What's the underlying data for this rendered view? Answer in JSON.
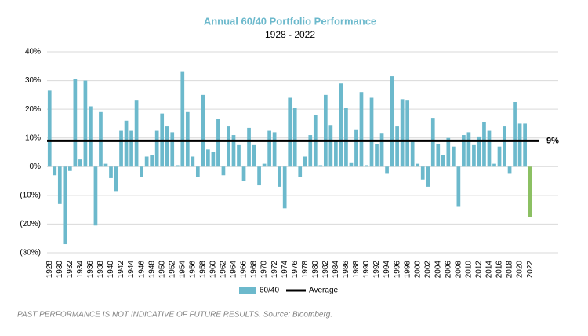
{
  "chart_data": {
    "type": "bar",
    "title": "Annual 60/40 Portfolio Performance",
    "subtitle": "1928 - 2022",
    "footnote": "PAST PERFORMANCE IS NOT INDICATIVE OF FUTURE RESULTS. Source: Bloomberg.",
    "categories": [
      "1928",
      null,
      "1930",
      null,
      "1932",
      null,
      "1934",
      null,
      "1936",
      null,
      "1938",
      null,
      "1940",
      null,
      "1942",
      null,
      "1944",
      null,
      "1946",
      null,
      "1948",
      null,
      "1950",
      null,
      "1952",
      null,
      "1954",
      null,
      "1956",
      null,
      "1958",
      null,
      "1960",
      null,
      "1962",
      null,
      "1964",
      null,
      "1966",
      null,
      "1968",
      null,
      "1970",
      null,
      "1972",
      null,
      "1974",
      null,
      "1976",
      null,
      "1978",
      null,
      "1980",
      null,
      "1982",
      null,
      "1984",
      null,
      "1986",
      null,
      "1988",
      null,
      "1990",
      null,
      "1992",
      null,
      "1994",
      null,
      "1996",
      null,
      "1998",
      null,
      "2000",
      null,
      "2002",
      null,
      "2004",
      null,
      "2006",
      null,
      "2008",
      null,
      "2010",
      null,
      "2012",
      null,
      "2014",
      null,
      "2016",
      null,
      "2018",
      null,
      "2020",
      null,
      "2022"
    ],
    "series": [
      {
        "name": "60/40",
        "color": "#6cb9cc",
        "values": [
          26.5,
          -3,
          -13,
          -27,
          -1.5,
          30.5,
          2.5,
          30,
          21,
          -20.5,
          19,
          1,
          -4,
          -8.5,
          12.5,
          16,
          12.5,
          23,
          -3.5,
          3.5,
          4,
          12.5,
          18.5,
          14,
          12,
          0.5,
          33,
          19,
          3.5,
          -3.5,
          25,
          6,
          5,
          16.5,
          -3,
          14,
          11,
          7.5,
          -5,
          13.5,
          7.5,
          -6.5,
          1,
          12.5,
          12,
          -7,
          -14.5,
          24,
          20.5,
          -3.5,
          3.5,
          11,
          18,
          0.5,
          25,
          14.5,
          9,
          29,
          20.5,
          1.5,
          13,
          26,
          0.5,
          24,
          8,
          11.5,
          -2.5,
          31.5,
          14,
          23.5,
          23,
          9,
          1,
          -4.5,
          -7,
          17,
          8,
          4,
          10,
          7,
          -14,
          11,
          12,
          7.5,
          10.5,
          15.5,
          12.5,
          1,
          7,
          14,
          -2.5,
          22.5,
          15,
          15,
          -17.5
        ],
        "colors": [
          "#6cb9cc",
          "#6cb9cc",
          "#6cb9cc",
          "#6cb9cc",
          "#6cb9cc",
          "#6cb9cc",
          "#6cb9cc",
          "#6cb9cc",
          "#6cb9cc",
          "#6cb9cc",
          "#6cb9cc",
          "#6cb9cc",
          "#6cb9cc",
          "#6cb9cc",
          "#6cb9cc",
          "#6cb9cc",
          "#6cb9cc",
          "#6cb9cc",
          "#6cb9cc",
          "#6cb9cc",
          "#6cb9cc",
          "#6cb9cc",
          "#6cb9cc",
          "#6cb9cc",
          "#6cb9cc",
          "#6cb9cc",
          "#6cb9cc",
          "#6cb9cc",
          "#6cb9cc",
          "#6cb9cc",
          "#6cb9cc",
          "#6cb9cc",
          "#6cb9cc",
          "#6cb9cc",
          "#6cb9cc",
          "#6cb9cc",
          "#6cb9cc",
          "#6cb9cc",
          "#6cb9cc",
          "#6cb9cc",
          "#6cb9cc",
          "#6cb9cc",
          "#6cb9cc",
          "#6cb9cc",
          "#6cb9cc",
          "#6cb9cc",
          "#6cb9cc",
          "#6cb9cc",
          "#6cb9cc",
          "#6cb9cc",
          "#6cb9cc",
          "#6cb9cc",
          "#6cb9cc",
          "#6cb9cc",
          "#6cb9cc",
          "#6cb9cc",
          "#6cb9cc",
          "#6cb9cc",
          "#6cb9cc",
          "#6cb9cc",
          "#6cb9cc",
          "#6cb9cc",
          "#6cb9cc",
          "#6cb9cc",
          "#6cb9cc",
          "#6cb9cc",
          "#6cb9cc",
          "#6cb9cc",
          "#6cb9cc",
          "#6cb9cc",
          "#6cb9cc",
          "#6cb9cc",
          "#6cb9cc",
          "#6cb9cc",
          "#6cb9cc",
          "#6cb9cc",
          "#6cb9cc",
          "#6cb9cc",
          "#6cb9cc",
          "#6cb9cc",
          "#6cb9cc",
          "#6cb9cc",
          "#6cb9cc",
          "#6cb9cc",
          "#6cb9cc",
          "#6cb9cc",
          "#6cb9cc",
          "#6cb9cc",
          "#6cb9cc",
          "#6cb9cc",
          "#6cb9cc",
          "#6cb9cc",
          "#6cb9cc",
          "#6cb9cc",
          "#8cc063"
        ]
      }
    ],
    "average": {
      "name": "Average",
      "value": 9,
      "label": "9%",
      "color": "#000000"
    },
    "ylim": [
      -30,
      40
    ],
    "yticks": [
      {
        "value": 40,
        "label": "40%"
      },
      {
        "value": 30,
        "label": "30%"
      },
      {
        "value": 20,
        "label": "20%"
      },
      {
        "value": 10,
        "label": "10%"
      },
      {
        "value": 0,
        "label": "0%"
      },
      {
        "value": -10,
        "label": "(10%)"
      },
      {
        "value": -20,
        "label": "(20%)"
      },
      {
        "value": -30,
        "label": "(30%)"
      }
    ],
    "grid": true
  }
}
